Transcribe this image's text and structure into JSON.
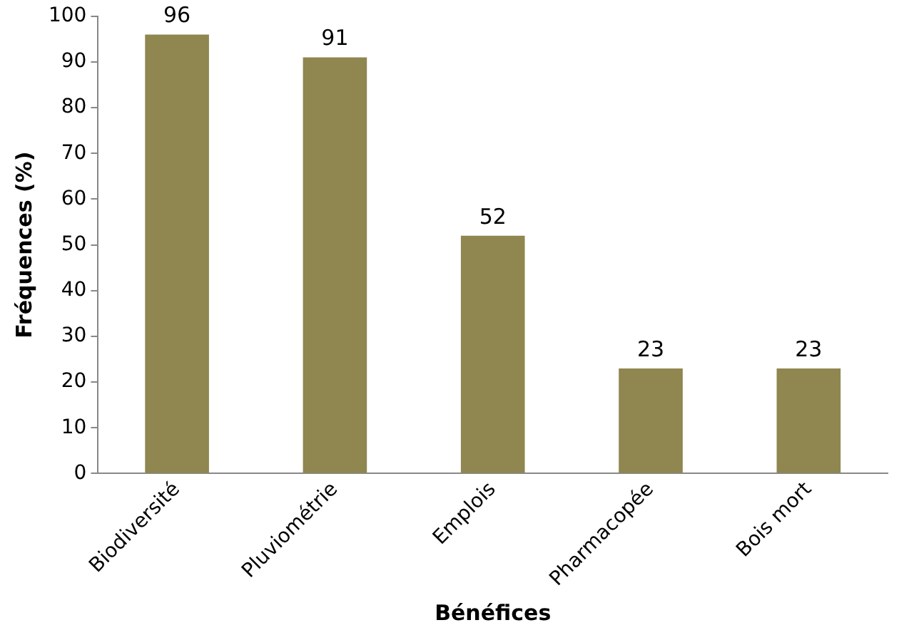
{
  "chart_data": {
    "type": "bar",
    "xlabel": "Bénéfices",
    "ylabel": "Fréquences (%)",
    "categories": [
      "Biodiversité",
      "Pluviométrie",
      "Emplois",
      "Pharmacopée",
      "Bois mort"
    ],
    "values": [
      96,
      91,
      52,
      23,
      23
    ],
    "color": "#8f8650",
    "ylim": [
      0,
      100
    ],
    "yticks": [
      0,
      10,
      20,
      30,
      40,
      50,
      60,
      70,
      80,
      90,
      100
    ],
    "grid": false,
    "legend": false,
    "data_labels": true
  }
}
